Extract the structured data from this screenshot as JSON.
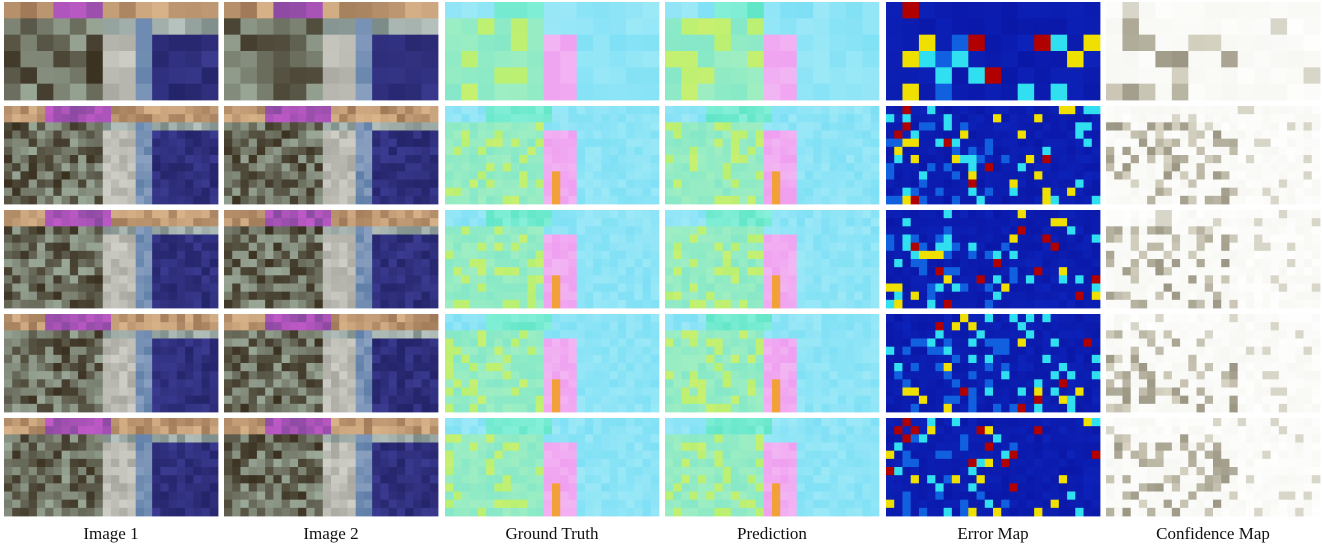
{
  "columns": [
    {
      "label": "Image 1",
      "kind": "image1"
    },
    {
      "label": "Image 2",
      "kind": "image2"
    },
    {
      "label": "Ground Truth",
      "kind": "flow"
    },
    {
      "label": "Prediction",
      "kind": "flow_pred"
    },
    {
      "label": "Error Map",
      "kind": "error"
    },
    {
      "label": "Confidence Map",
      "kind": "confidence"
    }
  ],
  "rows": [
    {
      "grid": [
        13,
        6
      ]
    },
    {
      "grid": [
        26,
        12
      ]
    },
    {
      "grid": [
        52,
        24
      ]
    },
    {
      "grid": [
        104,
        48
      ]
    },
    {
      "grid": [
        104,
        48
      ]
    }
  ],
  "colors": {
    "flow_background": "#7fe0f5",
    "flow_pink": "#ef9ff0",
    "flow_green": "#7ff07f",
    "flow_orange": "#f2a03a",
    "error_background": "#0a18a8",
    "error_high": "#b00000",
    "confidence_background": "#f7f7f3",
    "confidence_dark": "#6b6650"
  }
}
